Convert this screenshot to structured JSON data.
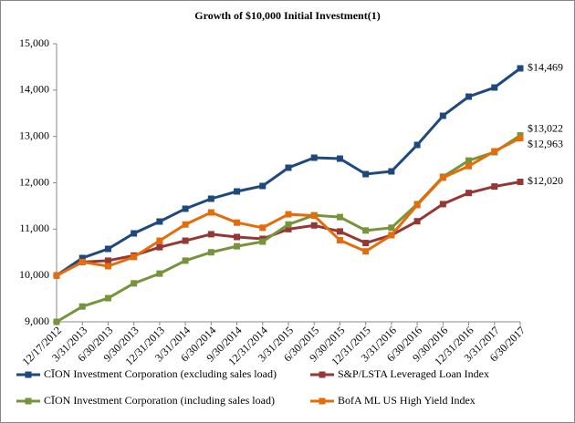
{
  "chart_data": {
    "type": "line",
    "title": "Growth of $10,000 Initial Investment(1)",
    "categories": [
      "12/17/2012",
      "3/31/2013",
      "6/30/2013",
      "9/30/2013",
      "12/31/2013",
      "3/31/2014",
      "6/30/2014",
      "9/30/2014",
      "12/31/2014",
      "3/31/2015",
      "6/30/2015",
      "9/30/2015",
      "12/31/2015",
      "3/31/2016",
      "6/30/2016",
      "9/30/2016",
      "12/31/2016",
      "3/31/2017",
      "6/30/2017"
    ],
    "series": [
      {
        "name": "CĪON Investment Corporation (excluding sales load)",
        "color": "#1f497d",
        "values": [
          10000,
          10377,
          10574,
          10908,
          11164,
          11440,
          11656,
          11813,
          11931,
          12325,
          12541,
          12521,
          12187,
          12246,
          12817,
          13446,
          13859,
          14056,
          14469
        ],
        "value_labels": [
          null,
          null,
          null,
          null,
          null,
          null,
          null,
          null,
          null,
          null,
          null,
          null,
          null,
          null,
          null,
          null,
          null,
          null,
          "$14,469"
        ]
      },
      {
        "name": "S&P/LSTA Leveraged Loan Index",
        "color": "#953735",
        "values": [
          10000,
          10290,
          10320,
          10430,
          10610,
          10750,
          10890,
          10830,
          10790,
          11000,
          11080,
          10950,
          10700,
          10870,
          11170,
          11540,
          11780,
          11920,
          12020
        ],
        "value_labels": [
          null,
          null,
          null,
          null,
          null,
          null,
          null,
          null,
          null,
          null,
          null,
          null,
          null,
          null,
          null,
          null,
          null,
          null,
          "$12,020"
        ]
      },
      {
        "name": "CĪON Investment Corporation (including sales load)",
        "color": "#77933c",
        "values": [
          9000,
          9330,
          9510,
          9830,
          10040,
          10320,
          10500,
          10630,
          10730,
          11100,
          11300,
          11260,
          10970,
          11030,
          11540,
          12130,
          12480,
          12660,
          13022
        ],
        "value_labels": [
          null,
          null,
          null,
          null,
          null,
          null,
          null,
          null,
          null,
          null,
          null,
          null,
          null,
          null,
          null,
          null,
          null,
          null,
          "$13,022"
        ]
      },
      {
        "name": "BofA ML US High Yield Index",
        "color": "#e46c0a",
        "values": [
          10000,
          10290,
          10200,
          10400,
          10750,
          11100,
          11360,
          11140,
          11030,
          11320,
          11290,
          10760,
          10520,
          10870,
          11520,
          12110,
          12360,
          12680,
          12963
        ],
        "value_labels": [
          null,
          null,
          null,
          null,
          null,
          null,
          null,
          null,
          null,
          null,
          null,
          null,
          null,
          null,
          null,
          null,
          null,
          null,
          "$12,963"
        ]
      }
    ],
    "ylim": [
      9000,
      15000
    ],
    "yticks": [
      {
        "value": 9000,
        "label": "9,000"
      },
      {
        "value": 10000,
        "label": "10,000"
      },
      {
        "value": 11000,
        "label": "11,000"
      },
      {
        "value": 12000,
        "label": "12,000"
      },
      {
        "value": 13000,
        "label": "13,000"
      },
      {
        "value": 14000,
        "label": "14,000"
      },
      {
        "value": 15000,
        "label": "15,000"
      }
    ],
    "grid": false,
    "legend": "bottom"
  }
}
